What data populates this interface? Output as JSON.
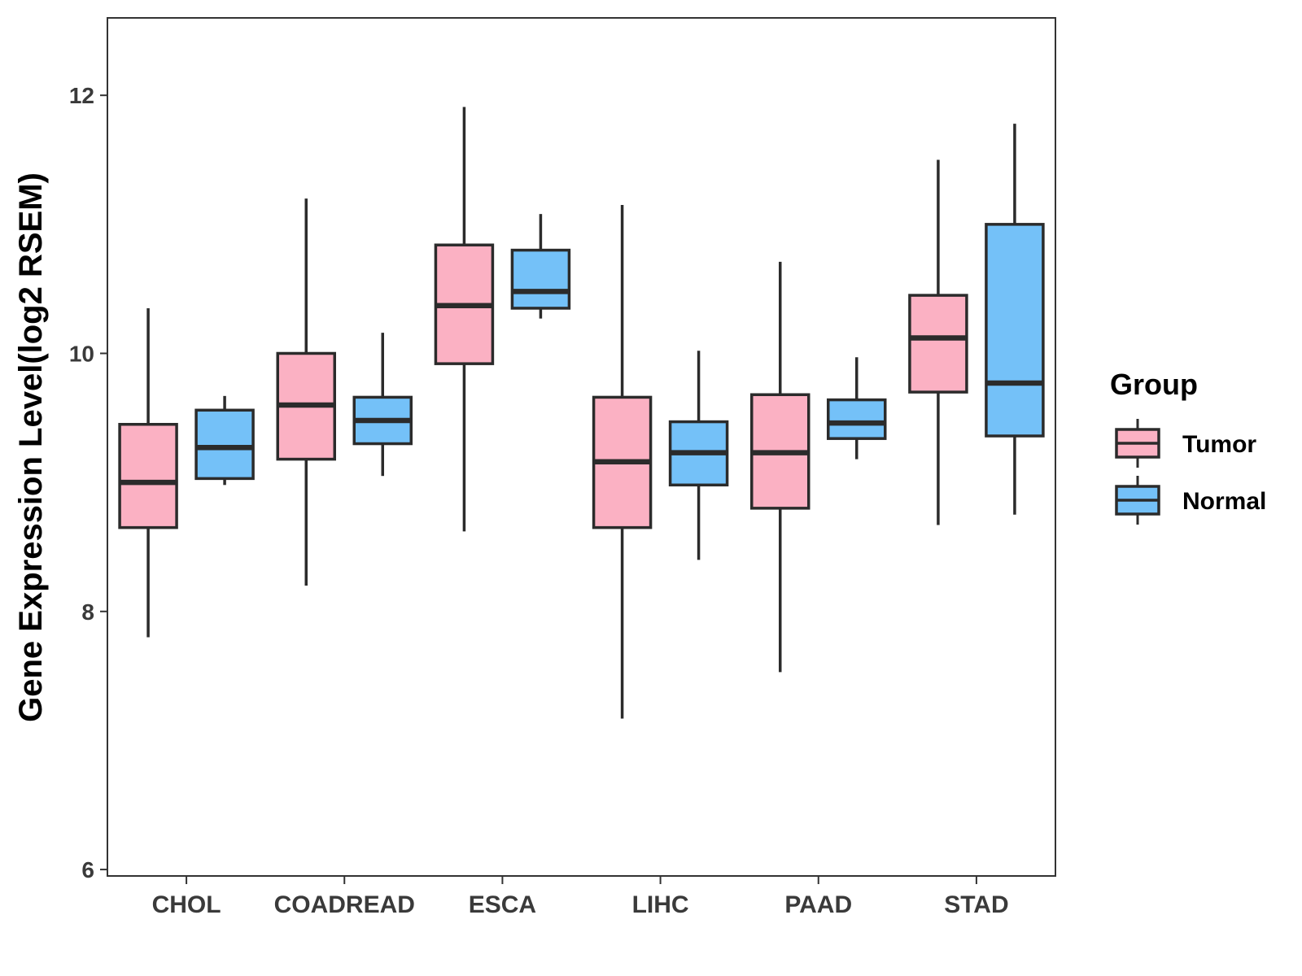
{
  "chart_data": {
    "type": "boxplot",
    "categories": [
      "CHOL",
      "COADREAD",
      "ESCA",
      "LIHC",
      "PAAD",
      "STAD"
    ],
    "ylabel": "Gene Expression Level(log2 RSEM)",
    "xlabel": "",
    "ylim": [
      5.95,
      12.6
    ],
    "yticks": [
      6,
      8,
      10,
      12
    ],
    "grid": false,
    "legend": {
      "title": "Group",
      "position": "right",
      "entries": [
        "Tumor",
        "Normal"
      ]
    },
    "series": [
      {
        "name": "Tumor",
        "color": "#FBB1C3",
        "boxes": [
          {
            "category": "CHOL",
            "min": 7.8,
            "q1": 8.65,
            "median": 9.0,
            "q3": 9.45,
            "max": 10.35
          },
          {
            "category": "COADREAD",
            "min": 8.2,
            "q1": 9.18,
            "median": 9.6,
            "q3": 10.0,
            "max": 11.2
          },
          {
            "category": "ESCA",
            "min": 8.62,
            "q1": 9.92,
            "median": 10.37,
            "q3": 10.84,
            "max": 11.91
          },
          {
            "category": "LIHC",
            "min": 7.17,
            "q1": 8.65,
            "median": 9.16,
            "q3": 9.66,
            "max": 11.15
          },
          {
            "category": "PAAD",
            "min": 7.53,
            "q1": 8.8,
            "median": 9.23,
            "q3": 9.68,
            "max": 10.71
          },
          {
            "category": "STAD",
            "min": 8.67,
            "q1": 9.7,
            "median": 10.12,
            "q3": 10.45,
            "max": 11.5
          }
        ]
      },
      {
        "name": "Normal",
        "color": "#74C1F8",
        "boxes": [
          {
            "category": "CHOL",
            "min": 8.98,
            "q1": 9.03,
            "median": 9.27,
            "q3": 9.56,
            "max": 9.67
          },
          {
            "category": "COADREAD",
            "min": 9.05,
            "q1": 9.3,
            "median": 9.48,
            "q3": 9.66,
            "max": 10.16
          },
          {
            "category": "ESCA",
            "min": 10.27,
            "q1": 10.35,
            "median": 10.48,
            "q3": 10.8,
            "max": 11.08
          },
          {
            "category": "LIHC",
            "min": 8.4,
            "q1": 8.98,
            "median": 9.23,
            "q3": 9.47,
            "max": 10.02
          },
          {
            "category": "PAAD",
            "min": 9.18,
            "q1": 9.34,
            "median": 9.46,
            "q3": 9.64,
            "max": 9.97
          },
          {
            "category": "STAD",
            "min": 8.75,
            "q1": 9.36,
            "median": 9.77,
            "q3": 11.0,
            "max": 11.78
          }
        ]
      }
    ]
  }
}
